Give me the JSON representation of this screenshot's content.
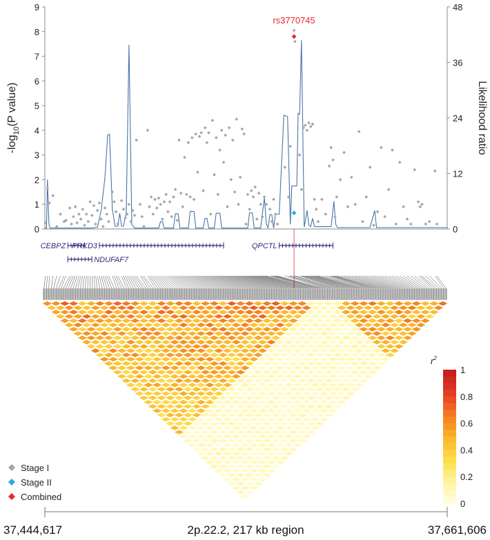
{
  "chart_data": {
    "type": "scatter",
    "title": "",
    "xlabel": "",
    "ylabel": "-log10(P value)",
    "ylabel_parts": {
      "pre": "-log",
      "sub": "10",
      "post": "(P value)"
    },
    "y2label": "Likelihood ratio",
    "ylim": [
      0,
      9
    ],
    "y2lim": [
      0,
      48
    ],
    "yticks": [
      "0",
      "1",
      "2",
      "3",
      "4",
      "5",
      "6",
      "7",
      "8",
      "9"
    ],
    "y2ticks": [
      "0",
      "12",
      "24",
      "36",
      "48"
    ],
    "top_snp": "rs3770745",
    "region": {
      "start_label": "37,444,617",
      "end_label": "37,661,606",
      "description": "2p.22.2, 217 kb region",
      "start": 37444617,
      "end": 37661606
    },
    "legend": [
      {
        "name": "Stage I",
        "color": "#a6a6a6"
      },
      {
        "name": "Stage II",
        "color": "#29abe2"
      },
      {
        "name": "Combined",
        "color": "#e8262c"
      }
    ],
    "colorbar": {
      "title": "r",
      "title_sup": "2",
      "ticks": [
        "0",
        "0.2",
        "0.4",
        "0.6",
        "0.8",
        "1"
      ]
    },
    "genes": [
      {
        "name": "CEBPZ",
        "start": 37457000,
        "end": 37466000,
        "row": 0,
        "label_side": "left"
      },
      {
        "name": "PRKD3",
        "start": 37474000,
        "end": 37541000,
        "row": 0,
        "label_side": "left"
      },
      {
        "name": "NDUFAF7",
        "start": 37457000,
        "end": 37470000,
        "row": 1,
        "label_side": "right"
      },
      {
        "name": "QPCTL",
        "start": 37571000,
        "end": 37600000,
        "row": 0,
        "label_side": "left"
      }
    ],
    "series": [
      {
        "name": "Stage I",
        "points": [
          [
            37445000,
            0.25
          ],
          [
            37446000,
            1.65
          ],
          [
            37447000,
            1.05
          ],
          [
            37449000,
            1.35
          ],
          [
            37451000,
            0.1
          ],
          [
            37453000,
            0.6
          ],
          [
            37455000,
            0.3
          ],
          [
            37456000,
            0.35
          ],
          [
            37458000,
            0.85
          ],
          [
            37459000,
            0.2
          ],
          [
            37460000,
            0.5
          ],
          [
            37461000,
            0.9
          ],
          [
            37462000,
            0.25
          ],
          [
            37463000,
            0.6
          ],
          [
            37464000,
            0.4
          ],
          [
            37465000,
            0.8
          ],
          [
            37466000,
            0.15
          ],
          [
            37467000,
            0.6
          ],
          [
            37468000,
            0.3
          ],
          [
            37469000,
            1.1
          ],
          [
            37470000,
            0.55
          ],
          [
            37471000,
            0.95
          ],
          [
            37472000,
            0.2
          ],
          [
            37473000,
            0.75
          ],
          [
            37474000,
            1.05
          ],
          [
            37475000,
            0.4
          ],
          [
            37476000,
            0.1
          ],
          [
            37477000,
            0.85
          ],
          [
            37478000,
            0.6
          ],
          [
            37479000,
            0.3
          ],
          [
            37481000,
            1.5
          ],
          [
            37482000,
            1.1
          ],
          [
            37483000,
            0.7
          ],
          [
            37484000,
            0.2
          ],
          [
            37486000,
            1.15
          ],
          [
            37487000,
            0.8
          ],
          [
            37488000,
            0.45
          ],
          [
            37489000,
            0.6
          ],
          [
            37490000,
            1.0
          ],
          [
            37491000,
            0.3
          ],
          [
            37492000,
            0.75
          ],
          [
            37493000,
            0.55
          ],
          [
            37494000,
            3.6
          ],
          [
            37496000,
            1.0
          ],
          [
            37497000,
            0.5
          ],
          [
            37498000,
            0.1
          ],
          [
            37500000,
            4.0
          ],
          [
            37501000,
            0.9
          ],
          [
            37502000,
            1.3
          ],
          [
            37503000,
            0.6
          ],
          [
            37504000,
            1.2
          ],
          [
            37505000,
            0.85
          ],
          [
            37506000,
            1.25
          ],
          [
            37507000,
            1.0
          ],
          [
            37508000,
            0.4
          ],
          [
            37509000,
            1.1
          ],
          [
            37510000,
            1.4
          ],
          [
            37511000,
            0.7
          ],
          [
            37512000,
            1.1
          ],
          [
            37513000,
            0.5
          ],
          [
            37514000,
            1.3
          ],
          [
            37515000,
            1.6
          ],
          [
            37516000,
            0.35
          ],
          [
            37517000,
            3.6
          ],
          [
            37518000,
            1.45
          ],
          [
            37519000,
            0.9
          ],
          [
            37520000,
            2.9
          ],
          [
            37521000,
            1.4
          ],
          [
            37522000,
            3.5
          ],
          [
            37523000,
            1.3
          ],
          [
            37524000,
            3.7
          ],
          [
            37525000,
            1.2
          ],
          [
            37526000,
            3.85
          ],
          [
            37527000,
            2.3
          ],
          [
            37528000,
            3.75
          ],
          [
            37529000,
            3.9
          ],
          [
            37530000,
            1.55
          ],
          [
            37531000,
            4.1
          ],
          [
            37532000,
            3.5
          ],
          [
            37533000,
            3.9
          ],
          [
            37534000,
            0.6
          ],
          [
            37535000,
            4.4
          ],
          [
            37536000,
            2.2
          ],
          [
            37537000,
            3.7
          ],
          [
            37538000,
            1.4
          ],
          [
            37539000,
            3.2
          ],
          [
            37540000,
            4.0
          ],
          [
            37541000,
            2.7
          ],
          [
            37542000,
            3.8
          ],
          [
            37543000,
            0.9
          ],
          [
            37544000,
            4.1
          ],
          [
            37545000,
            2.0
          ],
          [
            37546000,
            3.6
          ],
          [
            37547000,
            1.5
          ],
          [
            37548000,
            4.45
          ],
          [
            37549000,
            1.0
          ],
          [
            37550000,
            2.1
          ],
          [
            37551000,
            4.05
          ],
          [
            37552000,
            3.85
          ],
          [
            37553000,
            0.2
          ],
          [
            37554000,
            1.4
          ],
          [
            37555000,
            0.8
          ],
          [
            37556000,
            1.55
          ],
          [
            37557000,
            1.3
          ],
          [
            37558000,
            1.7
          ],
          [
            37559000,
            0.4
          ],
          [
            37560000,
            1.45
          ],
          [
            37561000,
            1.0
          ],
          [
            37562000,
            0.5
          ],
          [
            37563000,
            1.3
          ],
          [
            37564000,
            1.0
          ],
          [
            37566000,
            0.8
          ],
          [
            37567000,
            0.3
          ],
          [
            37568000,
            1.2
          ],
          [
            37569000,
            0.6
          ],
          [
            37570000,
            0.2
          ],
          [
            37574000,
            2.5
          ],
          [
            37576000,
            1.3
          ],
          [
            37577000,
            3.35
          ],
          [
            37579000,
            8.05
          ],
          [
            37579500,
            7.6
          ],
          [
            37582000,
            3.0
          ],
          [
            37583000,
            1.6
          ],
          [
            37584000,
            4.1
          ],
          [
            37585000,
            4.2
          ],
          [
            37586000,
            4.0
          ],
          [
            37587000,
            4.3
          ],
          [
            37588000,
            4.15
          ],
          [
            37589000,
            4.25
          ],
          [
            37590000,
            1.2
          ],
          [
            37591000,
            0.8
          ],
          [
            37592000,
            0.3
          ],
          [
            37594000,
            1.2
          ],
          [
            37596000,
            0.6
          ],
          [
            37598000,
            2.55
          ],
          [
            37599000,
            3.3
          ],
          [
            37600000,
            2.8
          ],
          [
            37601000,
            0.5
          ],
          [
            37602000,
            1.3
          ],
          [
            37604000,
            2.0
          ],
          [
            37606000,
            3.1
          ],
          [
            37608000,
            0.9
          ],
          [
            37610000,
            2.1
          ],
          [
            37612000,
            1.0
          ],
          [
            37614000,
            3.95
          ],
          [
            37616000,
            0.3
          ],
          [
            37618000,
            1.3
          ],
          [
            37620000,
            2.5
          ],
          [
            37622000,
            0.15
          ],
          [
            37624000,
            0.7
          ],
          [
            37626000,
            3.3
          ],
          [
            37628000,
            0.5
          ],
          [
            37630000,
            1.6
          ],
          [
            37632000,
            3.2
          ],
          [
            37634000,
            0.2
          ],
          [
            37636000,
            2.7
          ],
          [
            37638000,
            0.9
          ],
          [
            37640000,
            0.4
          ],
          [
            37642000,
            0.2
          ],
          [
            37644000,
            2.4
          ],
          [
            37646000,
            1.1
          ],
          [
            37647000,
            0.9
          ],
          [
            37648000,
            1.0
          ],
          [
            37650000,
            0.2
          ],
          [
            37652000,
            0.3
          ],
          [
            37655000,
            2.35
          ],
          [
            37656000,
            0.2
          ]
        ]
      },
      {
        "name": "Stage II",
        "points": [
          [
            37579000,
            0.65
          ]
        ]
      },
      {
        "name": "Combined",
        "points": [
          [
            37579000,
            7.8
          ]
        ]
      },
      {
        "name": "Likelihood ratio",
        "type": "line",
        "points": [
          [
            37444617,
            0.2
          ],
          [
            37445500,
            0.2
          ],
          [
            37446000,
            10.7
          ],
          [
            37446800,
            1.0
          ],
          [
            37447500,
            0.2
          ],
          [
            37470000,
            0.2
          ],
          [
            37473000,
            0.4
          ],
          [
            37475000,
            4.0
          ],
          [
            37477000,
            11.0
          ],
          [
            37478500,
            20.3
          ],
          [
            37479500,
            20.5
          ],
          [
            37481000,
            4.2
          ],
          [
            37482500,
            0.6
          ],
          [
            37484000,
            0.6
          ],
          [
            37485000,
            3.4
          ],
          [
            37486000,
            0.6
          ],
          [
            37487000,
            0.6
          ],
          [
            37488500,
            3.5
          ],
          [
            37490000,
            39.8
          ],
          [
            37491500,
            1.0
          ],
          [
            37493000,
            0.2
          ],
          [
            37506000,
            0.2
          ],
          [
            37507000,
            1.6
          ],
          [
            37508000,
            1.6
          ],
          [
            37509000,
            0.2
          ],
          [
            37514000,
            0.2
          ],
          [
            37515000,
            3.3
          ],
          [
            37516500,
            3.3
          ],
          [
            37517500,
            0.2
          ],
          [
            37522000,
            0.2
          ],
          [
            37523000,
            3.8
          ],
          [
            37525000,
            3.8
          ],
          [
            37526000,
            0.2
          ],
          [
            37530000,
            0.2
          ],
          [
            37531000,
            2.3
          ],
          [
            37532000,
            2.3
          ],
          [
            37533000,
            0.2
          ],
          [
            37536000,
            0.2
          ],
          [
            37537000,
            3.4
          ],
          [
            37539000,
            3.4
          ],
          [
            37540000,
            0.2
          ],
          [
            37554000,
            0.2
          ],
          [
            37555000,
            3.5
          ],
          [
            37556500,
            3.5
          ],
          [
            37557500,
            0.2
          ],
          [
            37561000,
            0.2
          ],
          [
            37563000,
            6.8
          ],
          [
            37564000,
            1.2
          ],
          [
            37565000,
            0.2
          ],
          [
            37566000,
            3.1
          ],
          [
            37567000,
            3.1
          ],
          [
            37568000,
            0.2
          ],
          [
            37569000,
            3.2
          ],
          [
            37571000,
            3.2
          ],
          [
            37573500,
            24.6
          ],
          [
            37575500,
            24.3
          ],
          [
            37577000,
            1.0
          ],
          [
            37577800,
            9.3
          ],
          [
            37580500,
            9.3
          ],
          [
            37581200,
            25.0
          ],
          [
            37582000,
            24.8
          ],
          [
            37583000,
            40.8
          ],
          [
            37584500,
            0.4
          ],
          [
            37586000,
            4.0
          ],
          [
            37587000,
            0.8
          ],
          [
            37588000,
            0.5
          ],
          [
            37589000,
            2.3
          ],
          [
            37590000,
            0.5
          ],
          [
            37599000,
            0.5
          ],
          [
            37600500,
            6.0
          ],
          [
            37601500,
            1.0
          ],
          [
            37602500,
            0.3
          ],
          [
            37620000,
            0.3
          ],
          [
            37622500,
            4.0
          ],
          [
            37623500,
            0.3
          ],
          [
            37661606,
            0.3
          ]
        ]
      }
    ]
  }
}
